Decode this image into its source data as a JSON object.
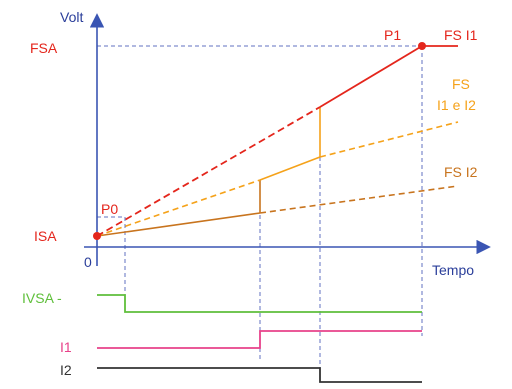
{
  "axes": {
    "y_label": "Volt",
    "x_label": "Tempo",
    "origin_label": "0",
    "fsa_label": "FSA",
    "isa_label": "ISA"
  },
  "points": {
    "p0_label": "P0",
    "p1_label": "P1"
  },
  "lines": {
    "fs_i1_label": "FS I1",
    "fs_both_line1": "FS",
    "fs_both_line2": "I1 e I2",
    "fs_i2_label": "FS I2"
  },
  "signals": {
    "ivsa_label": "IVSA -",
    "i1_label": "I1",
    "i2_label": "I2"
  },
  "colors": {
    "axis": "#3a55b3",
    "red": "#e4261c",
    "orange_light": "#f5a21a",
    "orange_dark": "#c8741e",
    "green": "#5fbf3b",
    "pink": "#e8428a",
    "black": "#333333",
    "guide": "#6070c0",
    "label_blue": "#2a3e9a"
  }
}
